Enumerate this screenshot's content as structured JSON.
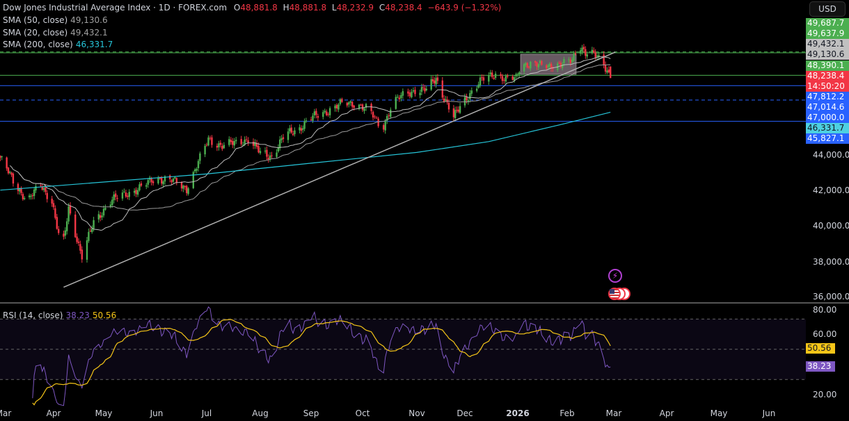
{
  "header": {
    "title": "Dow Jones Industrial Average Index · 1D · FOREX.com",
    "o_label": "O",
    "o": "48,881.8",
    "h_label": "H",
    "h": "48,881.8",
    "l_label": "L",
    "l": "48,232.9",
    "c_label": "C",
    "c": "48,238.4",
    "change": "−643.9 (−1.32%)"
  },
  "indicators": [
    {
      "label": "SMA (50, close)",
      "value": "49,130.6",
      "color": "#a0a0a0"
    },
    {
      "label": "SMA (20, close)",
      "value": "49,432.1",
      "color": "#a0a0a0"
    },
    {
      "label": "SMA (200, close)",
      "value": "46,331.7",
      "color": "#26c6da"
    }
  ],
  "currency_button": "USD",
  "price_labels": [
    {
      "text": "49,687.7",
      "bg": "#4caf50",
      "fg": "#fff"
    },
    {
      "text": "49,637.9",
      "bg": "#4caf50",
      "fg": "#fff"
    },
    {
      "text": "49,432.1",
      "bg": "#c0c0c0",
      "fg": "#131722"
    },
    {
      "text": "49,130.6",
      "bg": "#c0c0c0",
      "fg": "#131722"
    },
    {
      "text": "48,390.1",
      "bg": "#4caf50",
      "fg": "#fff"
    },
    {
      "text": "48,238.4",
      "bg": "#f23645",
      "fg": "#fff"
    },
    {
      "text": "14:50:20",
      "bg": "#f23645",
      "fg": "#fff"
    },
    {
      "text": "47,812.2",
      "bg": "#2962ff",
      "fg": "#fff"
    },
    {
      "text": "47,014.6",
      "bg": "#2962ff",
      "fg": "#fff"
    },
    {
      "text": "47,000.0",
      "bg": "#2962ff",
      "fg": "#fff"
    },
    {
      "text": "46,331.7",
      "bg": "#4dd0e1",
      "fg": "#131722"
    },
    {
      "text": "45,827.1",
      "bg": "#2962ff",
      "fg": "#fff"
    }
  ],
  "rsi": {
    "label": "RSI (14, close)",
    "value": "38.23",
    "ma_value": "50.56",
    "color": "#7e57c2",
    "ma_color": "#f5c518",
    "ticks": [
      "80.00",
      "60.00",
      "20.00"
    ]
  },
  "colors": {
    "up": "#4caf50",
    "down": "#f23645",
    "background": "#000000"
  },
  "chart_data": {
    "type": "candlestick",
    "title": "Dow Jones Industrial Average Index · 1D · FOREX.com",
    "y_ticks": [
      "44,000.0",
      "42,000.0",
      "40,000.0",
      "38,000.0",
      "36,000.0"
    ],
    "ylim": [
      36000,
      50500
    ],
    "x_ticks": [
      "Mar",
      "Apr",
      "May",
      "Jun",
      "Jul",
      "Aug",
      "Sep",
      "Oct",
      "Nov",
      "Dec",
      "2026",
      "Feb",
      "Mar",
      "Apr",
      "May",
      "Jun"
    ],
    "closes": [
      [
        "2025-02-27",
        43800
      ],
      [
        "2025-03-07",
        42500
      ],
      [
        "2025-03-16",
        41400
      ],
      [
        "2025-03-24",
        42300
      ],
      [
        "2025-03-31",
        41400
      ],
      [
        "2025-04-06",
        38500
      ],
      [
        "2025-04-10",
        41000
      ],
      [
        "2025-04-18",
        38300
      ],
      [
        "2025-04-25",
        40200
      ],
      [
        "2025-05-05",
        41400
      ],
      [
        "2025-05-14",
        41800
      ],
      [
        "2025-05-22",
        42100
      ],
      [
        "2025-06-01",
        42700
      ],
      [
        "2025-06-11",
        42500
      ],
      [
        "2025-06-19",
        42100
      ],
      [
        "2025-06-25",
        43300
      ],
      [
        "2025-07-02",
        44850
      ],
      [
        "2025-07-10",
        44450
      ],
      [
        "2025-07-18",
        44650
      ],
      [
        "2025-07-25",
        44850
      ],
      [
        "2025-08-01",
        44050
      ],
      [
        "2025-08-08",
        43900
      ],
      [
        "2025-08-16",
        45050
      ],
      [
        "2025-08-24",
        45400
      ],
      [
        "2025-09-01",
        46000
      ],
      [
        "2025-09-10",
        46400
      ],
      [
        "2025-09-19",
        46800
      ],
      [
        "2025-09-27",
        46850
      ],
      [
        "2025-10-05",
        46400
      ],
      [
        "2025-10-12",
        45400
      ],
      [
        "2025-10-18",
        46800
      ],
      [
        "2025-10-25",
        47350
      ],
      [
        "2025-11-01",
        47600
      ],
      [
        "2025-11-07",
        47550
      ],
      [
        "2025-11-13",
        48250
      ],
      [
        "2025-11-18",
        47150
      ],
      [
        "2025-11-24",
        46000
      ],
      [
        "2025-11-30",
        47000
      ],
      [
        "2025-12-06",
        47550
      ],
      [
        "2025-12-13",
        48300
      ],
      [
        "2025-12-19",
        48500
      ],
      [
        "2025-12-25",
        48100
      ],
      [
        "2025-12-31",
        48250
      ],
      [
        "2026-01-03",
        49100
      ],
      [
        "2026-01-11",
        48900
      ],
      [
        "2026-01-19",
        49000
      ],
      [
        "2026-01-28",
        48900
      ],
      [
        "2026-02-04",
        49300
      ],
      [
        "2026-02-08",
        50200
      ],
      [
        "2026-02-12",
        49550
      ],
      [
        "2026-02-19",
        49500
      ],
      [
        "2026-02-23",
        49100
      ],
      [
        "2026-02-27",
        48238.4
      ]
    ],
    "sma200": [
      [
        "2025-02-27",
        42000
      ],
      [
        "2025-07-01",
        42900
      ],
      [
        "2025-09-01",
        43500
      ],
      [
        "2025-11-01",
        44100
      ],
      [
        "2025-12-15",
        44700
      ],
      [
        "2026-01-28",
        45650
      ],
      [
        "2026-02-27",
        46331.7
      ]
    ],
    "horizontal_levels": [
      {
        "price": 49687.7,
        "color": "#4caf50",
        "style": "dashed"
      },
      {
        "price": 49637.9,
        "color": "#4caf50",
        "style": "solid"
      },
      {
        "price": 48390.1,
        "color": "#4caf50",
        "style": "solid"
      },
      {
        "price": 47812.2,
        "color": "#2962ff",
        "style": "solid"
      },
      {
        "price": 47014.6,
        "color": "#2962ff",
        "style": "dashed"
      },
      {
        "price": 45827.1,
        "color": "#2962ff",
        "style": "solid"
      }
    ],
    "trendline": [
      [
        "2025-04-07",
        36600
      ],
      [
        "2026-03-02",
        49680
      ]
    ],
    "rsi_levels": [
      70,
      50,
      30
    ]
  }
}
